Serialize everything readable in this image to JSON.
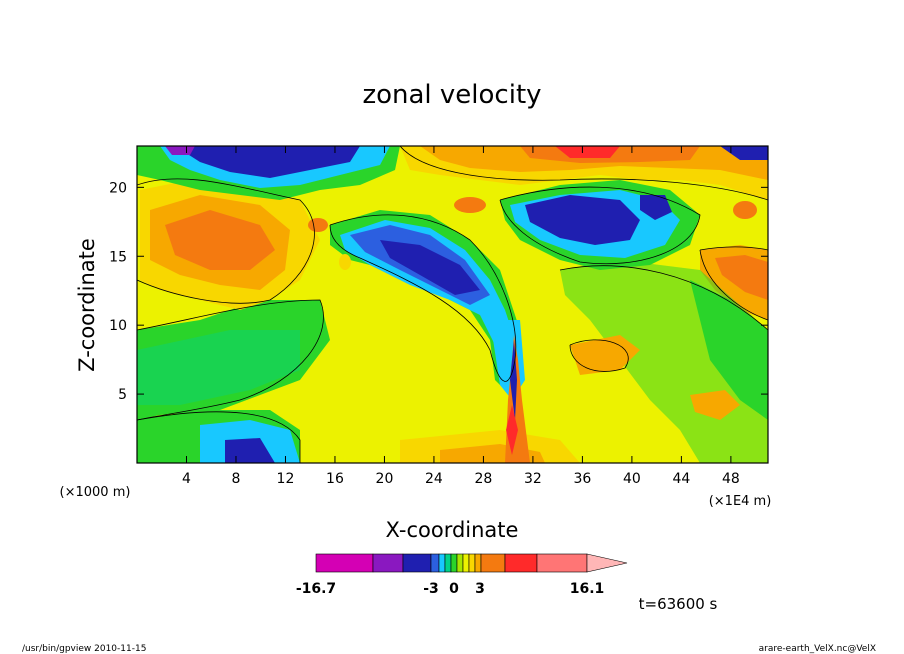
{
  "chart_data": {
    "type": "heatmap",
    "title": "zonal velocity",
    "xlabel": "X-coordinate",
    "ylabel": "Z-coordinate",
    "x_unit_note": "(×1000 m)",
    "x_scale_note": "(×1E4 m)",
    "xlim": [
      0,
      51
    ],
    "ylim": [
      0,
      23
    ],
    "x_ticks": [
      4,
      8,
      12,
      16,
      20,
      24,
      28,
      32,
      36,
      40,
      44,
      48
    ],
    "y_ticks": [
      5,
      10,
      15,
      20
    ],
    "colorbar": {
      "min_label": "-16.7",
      "max_label": "16.1",
      "tick_labels": [
        "-3",
        "0",
        "3"
      ],
      "colors": [
        "#d400b4",
        "#8a18c0",
        "#1f1fb0",
        "#2c5fe0",
        "#18c8ff",
        "#00d28a",
        "#2ad42a",
        "#a8e600",
        "#ecf200",
        "#f8d700",
        "#f7a800",
        "#f47a10",
        "#ff2a2a",
        "#ff7575",
        "#ffb6b6"
      ]
    },
    "time_label": "t=63600 s"
  },
  "footer": {
    "left": "/usr/bin/gpview   2010-11-15",
    "right": "arare-earth_VelX.nc@VelX"
  }
}
